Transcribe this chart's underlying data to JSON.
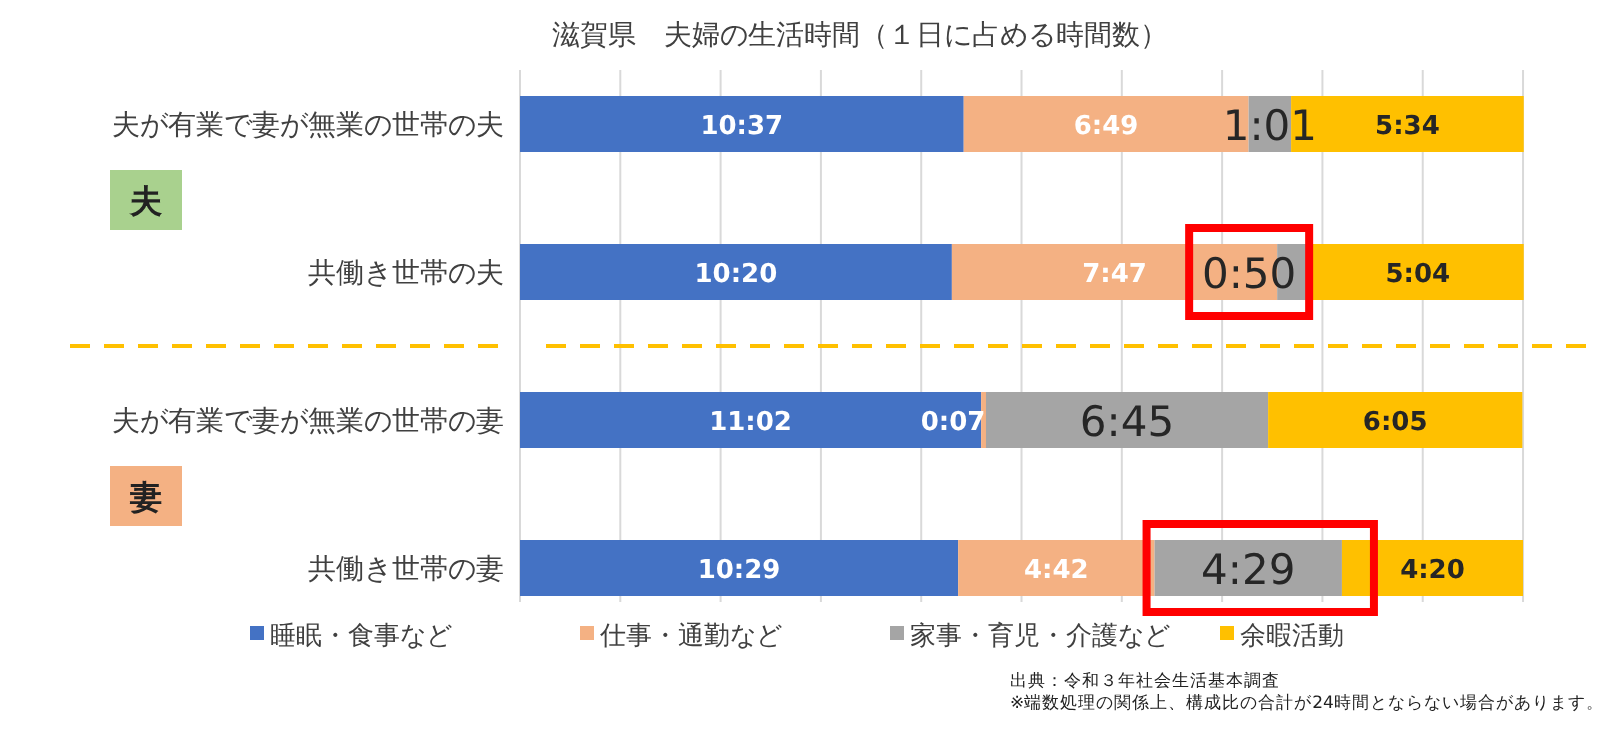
{
  "chart_data": {
    "type": "bar",
    "orientation": "horizontal",
    "stacked": true,
    "title": "滋賀県　夫婦の生活時間（１日に占める時間数）",
    "categories": [
      "夫が有業で妻が無業の世帯の夫",
      "共働き世帯の夫",
      "夫が有業で妻が無業の世帯の妻",
      "共働き世帯の妻"
    ],
    "series": [
      {
        "name": "睡眠・食事など",
        "color": "#4472c4",
        "values": [
          637,
          620,
          662,
          629
        ],
        "value_labels": [
          "10:37",
          "10:20",
          "11:02",
          "10:29"
        ]
      },
      {
        "name": "仕事・通勤など",
        "color": "#f4b183",
        "values": [
          409,
          467,
          7,
          282
        ],
        "value_labels": [
          "6:49",
          "7:47",
          "0:07",
          "4:42"
        ]
      },
      {
        "name": "家事・育児・介護など",
        "color": "#a5a5a5",
        "values": [
          61,
          50,
          405,
          269
        ],
        "value_labels": [
          "1:01",
          "0:50",
          "6:45",
          "4:29"
        ]
      },
      {
        "name": "余暇活動",
        "color": "#ffc000",
        "values": [
          334,
          304,
          365,
          260
        ],
        "value_labels": [
          "5:34",
          "5:04",
          "6:05",
          "4:20"
        ]
      }
    ],
    "xlim": [
      0,
      1450
    ],
    "xticks": [
      {
        "value": 0,
        "label": null
      },
      {
        "value": 144,
        "label": null
      },
      {
        "value": 288,
        "label": null
      },
      {
        "value": 432,
        "label": null
      },
      {
        "value": 576,
        "label": null
      },
      {
        "value": 720,
        "label": null
      },
      {
        "value": 864,
        "label": null
      },
      {
        "value": 1008,
        "label": null
      },
      {
        "value": 1152,
        "label": null
      },
      {
        "value": 1296,
        "label": null
      },
      {
        "value": 1440,
        "label": null
      }
    ],
    "grid": "x",
    "legend": "bottom",
    "annotations": [
      "夫",
      "妻",
      "出典：令和３年社会生活基本調査",
      "※端数処理の関係上、構成比の合計が24時間とならない場合があります。"
    ]
  }
}
